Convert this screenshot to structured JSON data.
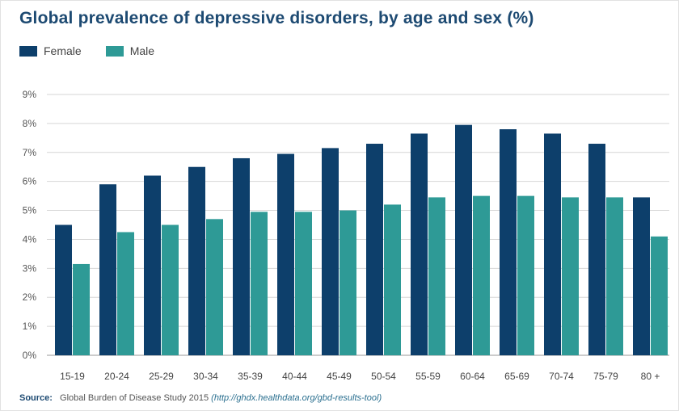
{
  "chart_data": {
    "type": "bar",
    "title": "Global prevalence of depressive disorders, by age and sex (%)",
    "categories": [
      "15-19",
      "20-24",
      "25-29",
      "30-34",
      "35-39",
      "40-44",
      "45-49",
      "50-54",
      "55-59",
      "60-64",
      "65-69",
      "70-74",
      "75-79",
      "80 +"
    ],
    "series": [
      {
        "name": "Female",
        "color": "#0d3f6b",
        "values": [
          4.5,
          5.9,
          6.2,
          6.5,
          6.8,
          6.95,
          7.15,
          7.3,
          7.65,
          7.95,
          7.8,
          7.65,
          7.3,
          5.45
        ]
      },
      {
        "name": "Male",
        "color": "#2e9a96",
        "values": [
          3.15,
          4.25,
          4.5,
          4.7,
          4.95,
          4.95,
          5.0,
          5.2,
          5.45,
          5.5,
          5.5,
          5.45,
          5.45,
          4.1
        ]
      }
    ],
    "yticks": [
      "0%",
      "1%",
      "2%",
      "3%",
      "4%",
      "5%",
      "6%",
      "7%",
      "8%",
      "9%"
    ],
    "ylim": [
      0,
      9
    ],
    "grid": true,
    "legend_position": "top-left"
  },
  "source": {
    "label": "Source:",
    "text": "Global Burden of Disease Study 2015",
    "url": "(http://ghdx.healthdata.org/gbd-results-tool)"
  }
}
